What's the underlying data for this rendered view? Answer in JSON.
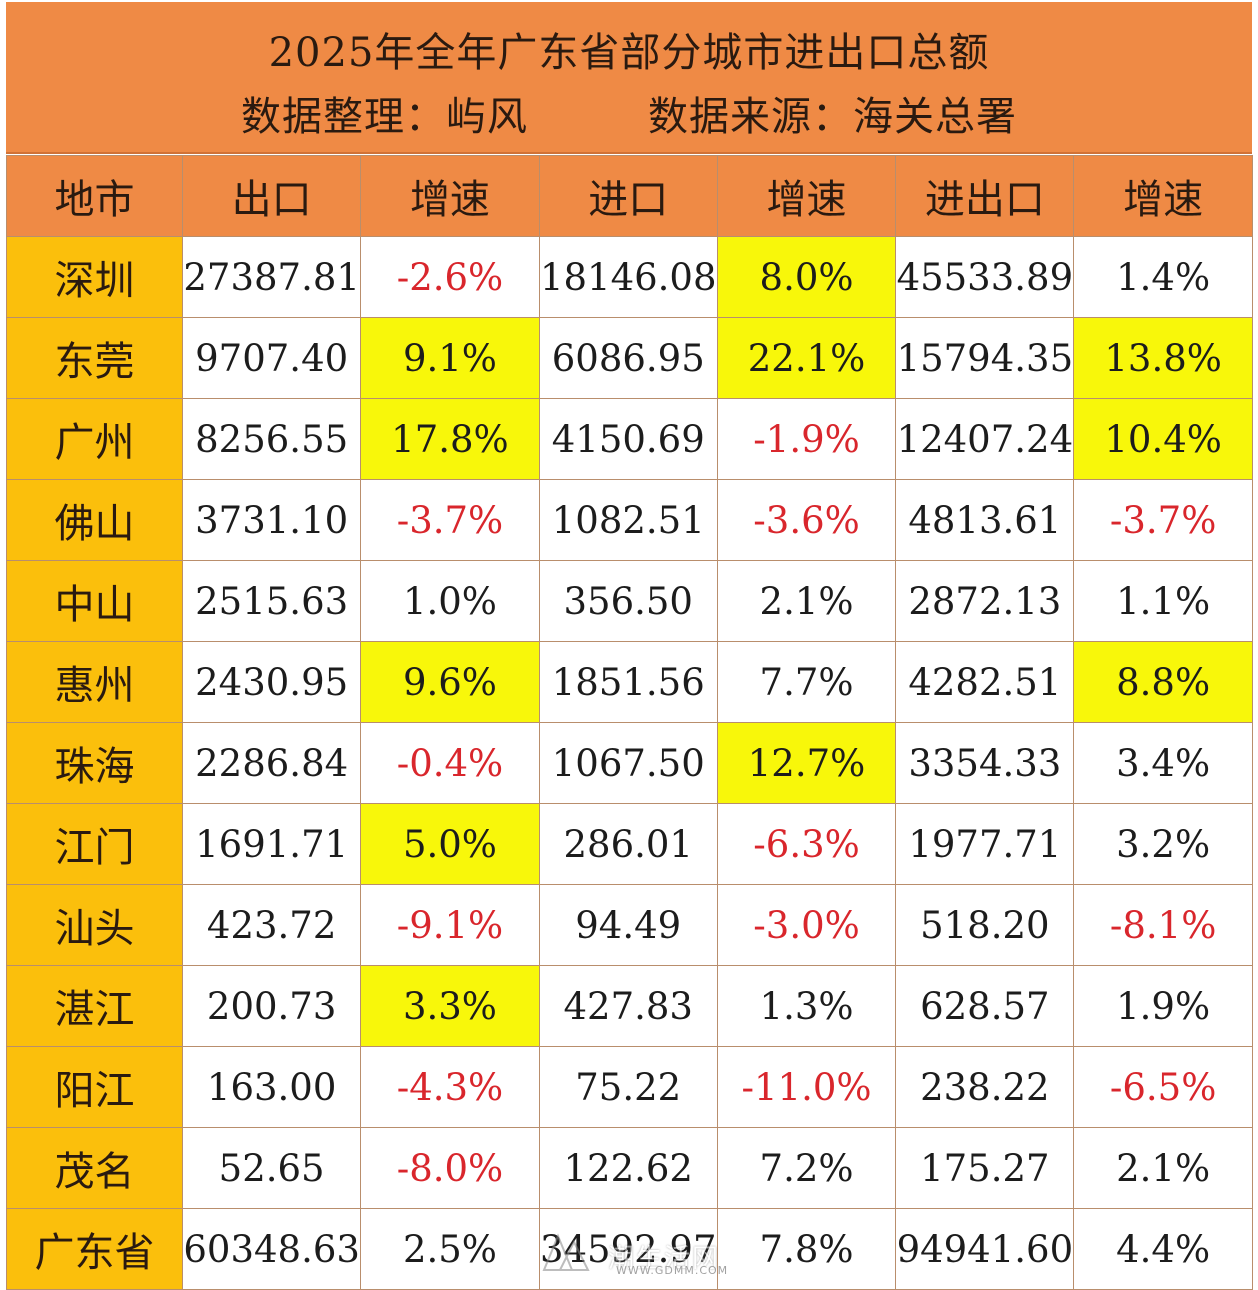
{
  "title": {
    "line1": "2025年全年广东省部分城市进出口总额",
    "organizer": "数据整理：屿风",
    "source": "数据来源：海关总署"
  },
  "table": {
    "headers": [
      "地市",
      "出口",
      "增速",
      "进口",
      "增速",
      "进出口",
      "增速"
    ],
    "rows": [
      {
        "city": "深圳",
        "export": "27387.81",
        "export_growth": "-2.6%",
        "import": "18146.08",
        "import_growth": "8.0%",
        "total": "45533.89",
        "total_growth": "1.4%"
      },
      {
        "city": "东莞",
        "export": "9707.40",
        "export_growth": "9.1%",
        "import": "6086.95",
        "import_growth": "22.1%",
        "total": "15794.35",
        "total_growth": "13.8%"
      },
      {
        "city": "广州",
        "export": "8256.55",
        "export_growth": "17.8%",
        "import": "4150.69",
        "import_growth": "-1.9%",
        "total": "12407.24",
        "total_growth": "10.4%"
      },
      {
        "city": "佛山",
        "export": "3731.10",
        "export_growth": "-3.7%",
        "import": "1082.51",
        "import_growth": "-3.6%",
        "total": "4813.61",
        "total_growth": "-3.7%"
      },
      {
        "city": "中山",
        "export": "2515.63",
        "export_growth": "1.0%",
        "import": "356.50",
        "import_growth": "2.1%",
        "total": "2872.13",
        "total_growth": "1.1%"
      },
      {
        "city": "惠州",
        "export": "2430.95",
        "export_growth": "9.6%",
        "import": "1851.56",
        "import_growth": "7.7%",
        "total": "4282.51",
        "total_growth": "8.8%"
      },
      {
        "city": "珠海",
        "export": "2286.84",
        "export_growth": "-0.4%",
        "import": "1067.50",
        "import_growth": "12.7%",
        "total": "3354.33",
        "total_growth": "3.4%"
      },
      {
        "city": "江门",
        "export": "1691.71",
        "export_growth": "5.0%",
        "import": "286.01",
        "import_growth": "-6.3%",
        "total": "1977.71",
        "total_growth": "3.2%"
      },
      {
        "city": "汕头",
        "export": "423.72",
        "export_growth": "-9.1%",
        "import": "94.49",
        "import_growth": "-3.0%",
        "total": "518.20",
        "total_growth": "-8.1%"
      },
      {
        "city": "湛江",
        "export": "200.73",
        "export_growth": "3.3%",
        "import": "427.83",
        "import_growth": "1.3%",
        "total": "628.57",
        "total_growth": "1.9%"
      },
      {
        "city": "阳江",
        "export": "163.00",
        "export_growth": "-4.3%",
        "import": "75.22",
        "import_growth": "-11.0%",
        "total": "238.22",
        "total_growth": "-6.5%"
      },
      {
        "city": "茂名",
        "export": "52.65",
        "export_growth": "-8.0%",
        "import": "122.62",
        "import_growth": "7.2%",
        "total": "175.27",
        "total_growth": "2.1%"
      },
      {
        "city": "广东省",
        "export": "60348.63",
        "export_growth": "2.5%",
        "import": "34592.97",
        "import_growth": "7.8%",
        "total": "94941.60",
        "total_growth": "4.4%"
      }
    ]
  },
  "watermark": {
    "name": "潮生活网",
    "url": "WWW.GDMM.COM"
  },
  "colors": {
    "header_bg": "#ef8a45",
    "city_bg": "#fbbf0c",
    "highlight": "#f8f70a",
    "negative_text": "#d9262c"
  }
}
